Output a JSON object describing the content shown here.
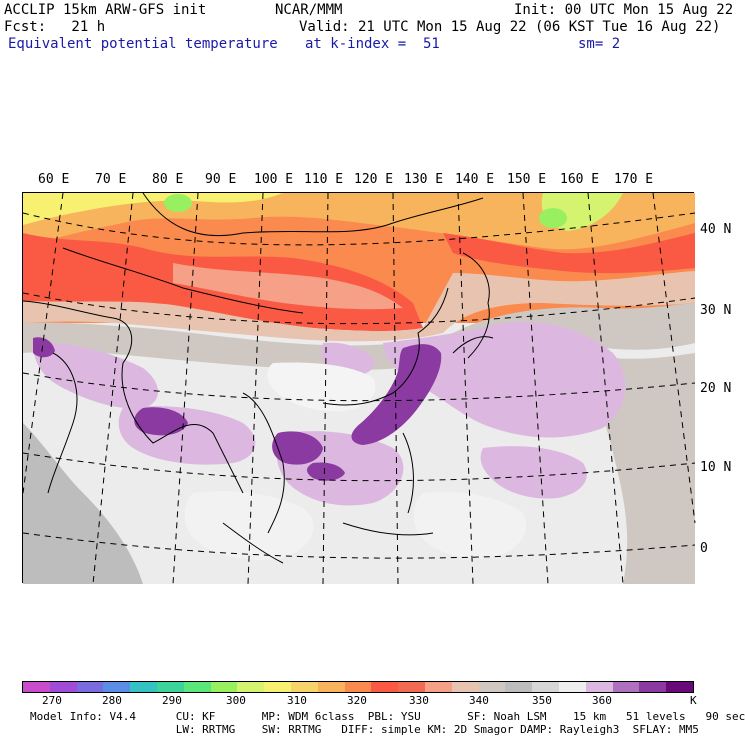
{
  "header": {
    "model": "ACCLIP 15km ARW-GFS init",
    "center": "NCAR/MMM",
    "init": "Init: 00 UTC Mon 15 Aug 22",
    "fcst": "Fcst:   21 h",
    "valid": "Valid: 21 UTC Mon 15 Aug 22 (06 KST Tue 16 Aug 22)",
    "field": "Equivalent potential temperature",
    "level": "at k-index =  51",
    "smooth": "sm= 2"
  },
  "map": {
    "lon_labels": [
      "60 E",
      "70 E",
      "80 E",
      "90 E",
      "100 E",
      "110 E",
      "120 E",
      "130 E",
      "140 E",
      "150 E",
      "160 E",
      "170 E"
    ],
    "lat_labels": [
      "40 N",
      "30 N",
      "20 N",
      "10 N",
      "0"
    ]
  },
  "colorbar": {
    "colors": [
      "#c84ccc",
      "#a04cd8",
      "#7a6ce0",
      "#5a8ee6",
      "#34c2c2",
      "#3cd49a",
      "#5ae67a",
      "#98f060",
      "#d4f470",
      "#f8f070",
      "#f6d46a",
      "#f8b45c",
      "#fa8a4e",
      "#fa5a44",
      "#f26a52",
      "#f6a088",
      "#e8c4b0",
      "#cfc8c2",
      "#bdbdbd",
      "#d6d6d6",
      "#eeeeee",
      "#dcb8e0",
      "#b070c0",
      "#8a3aa0",
      "#6a0a7a"
    ],
    "labels": [
      "270",
      "280",
      "290",
      "300",
      "310",
      "320",
      "330",
      "340",
      "350",
      "360"
    ],
    "unit": "K"
  },
  "footer": {
    "line1": "Model Info: V4.4      CU: KF       MP: WDM 6class  PBL: YSU       SF: Noah LSM    15 km   51 levels   90 sec",
    "line2": "                      LW: RRTMG    SW: RRTMG   DIFF: simple KM: 2D Smagor DAMP: Rayleigh3  SFLAY: MM5"
  }
}
